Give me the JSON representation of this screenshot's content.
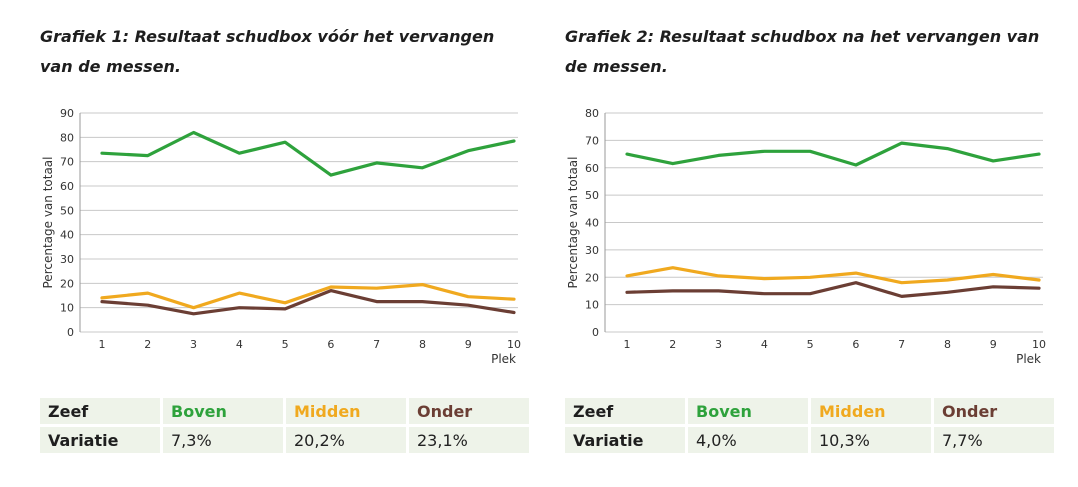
{
  "chart_data": [
    {
      "type": "line",
      "title": "Grafiek 1: Resultaat schudbox vóór het vervangen van de messen.",
      "xlabel": "Plek",
      "ylabel": "Percentage van totaal",
      "categories": [
        "1",
        "2",
        "3",
        "4",
        "5",
        "6",
        "7",
        "8",
        "9",
        "10"
      ],
      "ylim": [
        0,
        90
      ],
      "yticks": [
        0,
        10,
        20,
        30,
        40,
        50,
        60,
        70,
        80,
        90
      ],
      "grid": true,
      "colors": {
        "Boven": "#2ea23c",
        "Midden": "#f0a91f",
        "Onder": "#6b3e34"
      },
      "series": [
        {
          "key": "Boven",
          "values": [
            73.5,
            72.5,
            82,
            73.5,
            78,
            64.5,
            69.5,
            67.5,
            74.5,
            78.5
          ]
        },
        {
          "key": "Midden",
          "values": [
            14,
            16,
            10,
            16,
            12,
            18.5,
            18,
            19.5,
            14.5,
            13.5
          ]
        },
        {
          "key": "Onder",
          "values": [
            12.5,
            11,
            7.5,
            10,
            9.5,
            17,
            12.5,
            12.5,
            11,
            8
          ]
        }
      ],
      "table": {
        "header": [
          "Zeef",
          "Boven",
          "Midden",
          "Onder"
        ],
        "row": [
          "Variatie",
          "7,3%",
          "20,2%",
          "23,1%"
        ]
      }
    },
    {
      "type": "line",
      "title": "Grafiek 2: Resultaat schudbox na het vervangen van de messen.",
      "xlabel": "Plek",
      "ylabel": "Percentage van totaal",
      "categories": [
        "1",
        "2",
        "3",
        "4",
        "5",
        "6",
        "7",
        "8",
        "9",
        "10"
      ],
      "ylim": [
        0,
        80
      ],
      "yticks": [
        0,
        10,
        20,
        30,
        40,
        50,
        60,
        70,
        80
      ],
      "grid": true,
      "colors": {
        "Boven": "#2ea23c",
        "Midden": "#f0a91f",
        "Onder": "#6b3e34"
      },
      "series": [
        {
          "key": "Boven",
          "values": [
            65,
            61.5,
            64.5,
            66,
            66,
            61,
            69,
            67,
            62.5,
            65
          ]
        },
        {
          "key": "Midden",
          "values": [
            20.5,
            23.5,
            20.5,
            19.5,
            20,
            21.5,
            18,
            19,
            21,
            19
          ]
        },
        {
          "key": "Onder",
          "values": [
            14.5,
            15,
            15,
            14,
            14,
            18,
            13,
            14.5,
            16.5,
            16
          ]
        }
      ],
      "table": {
        "header": [
          "Zeef",
          "Boven",
          "Midden",
          "Onder"
        ],
        "row": [
          "Variatie",
          "4,0%",
          "10,3%",
          "7,7%"
        ]
      }
    }
  ]
}
